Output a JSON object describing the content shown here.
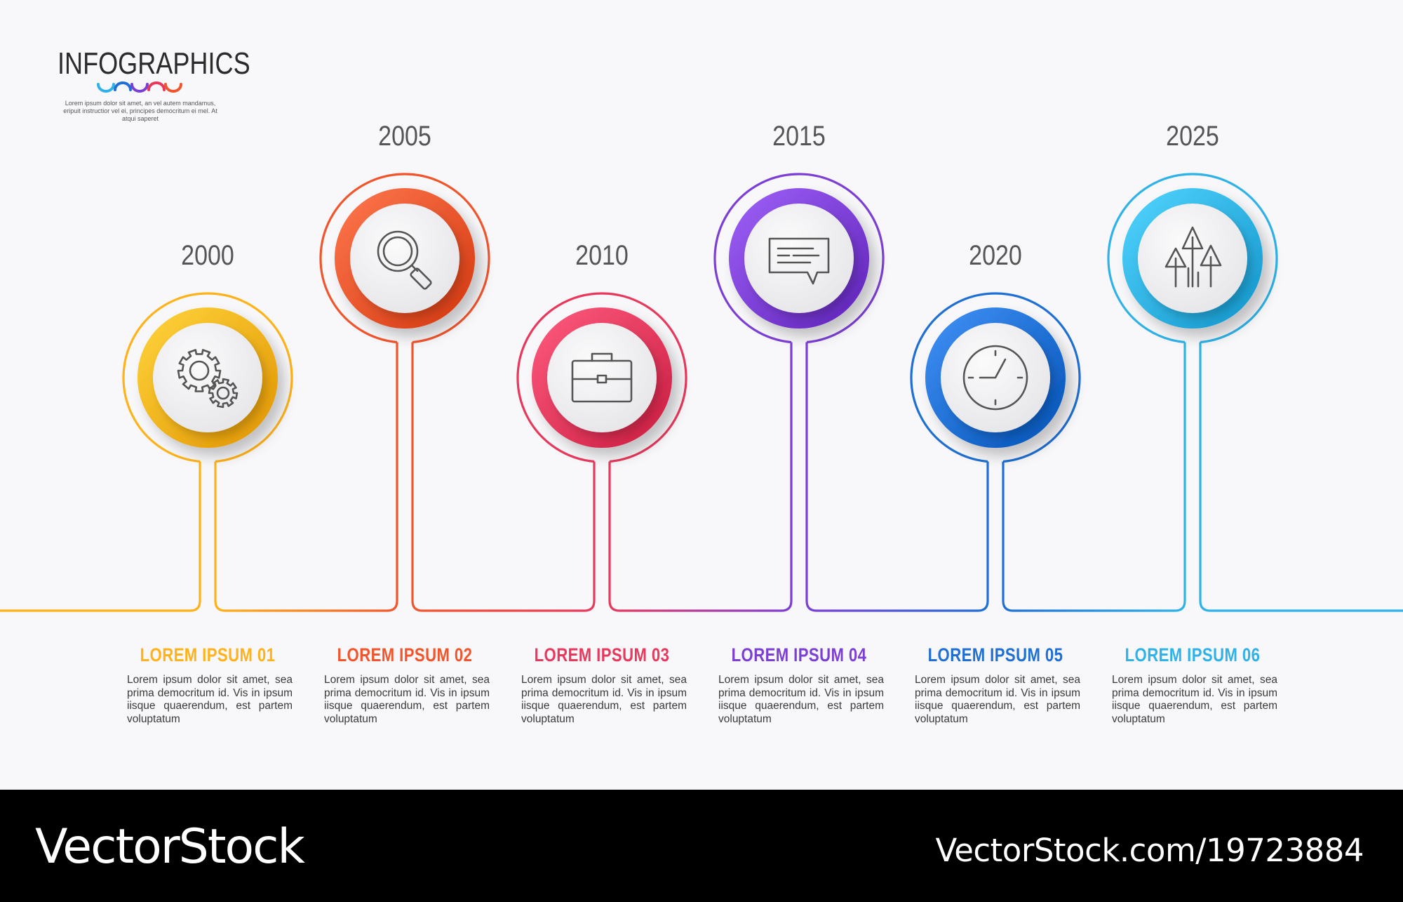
{
  "header": {
    "title": "INFOGRAPHICS",
    "subtitle": "Lorem ipsum dolor sit amet, an vel autem mandamus, eripuit instructior vel ei, principes democritum ei mel. At atqui saperet"
  },
  "steps": [
    {
      "year": "2000",
      "title": "LOREM IPSUM 01",
      "color": "#ffb21a",
      "icon": "gears-icon",
      "desc": "Lorem ipsum dolor sit amet, sea prima democritum id. Vis in ipsum iisque quaerendum, est partem voluptatum"
    },
    {
      "year": "2005",
      "title": "LOREM IPSUM 02",
      "color": "#f2552c",
      "icon": "magnifier-icon",
      "desc": "Lorem ipsum dolor sit amet, sea prima democritum id. Vis in ipsum iisque quaerendum, est partem voluptatum"
    },
    {
      "year": "2010",
      "title": "LOREM IPSUM 03",
      "color": "#e8395d",
      "icon": "briefcase-icon",
      "desc": "Lorem ipsum dolor sit amet, sea prima democritum id. Vis in ipsum iisque quaerendum, est partem voluptatum"
    },
    {
      "year": "2015",
      "title": "LOREM IPSUM 04",
      "color": "#7c3fd6",
      "icon": "chat-bubble-icon",
      "desc": "Lorem ipsum dolor sit amet, sea prima democritum id. Vis in ipsum iisque quaerendum, est partem voluptatum"
    },
    {
      "year": "2020",
      "title": "LOREM IPSUM 05",
      "color": "#1f6fd4",
      "icon": "clock-icon",
      "desc": "Lorem ipsum dolor sit amet, sea prima democritum id. Vis in ipsum iisque quaerendum, est partem voluptatum"
    },
    {
      "year": "2025",
      "title": "LOREM IPSUM 06",
      "color": "#2fb2e8",
      "icon": "growth-arrows-icon",
      "desc": "Lorem ipsum dolor sit amet, sea prima democritum id. Vis in ipsum iisque quaerendum, est partem voluptatum"
    }
  ],
  "footer": {
    "brand": "VectorStock",
    "url": "VectorStock.com/19723884"
  }
}
